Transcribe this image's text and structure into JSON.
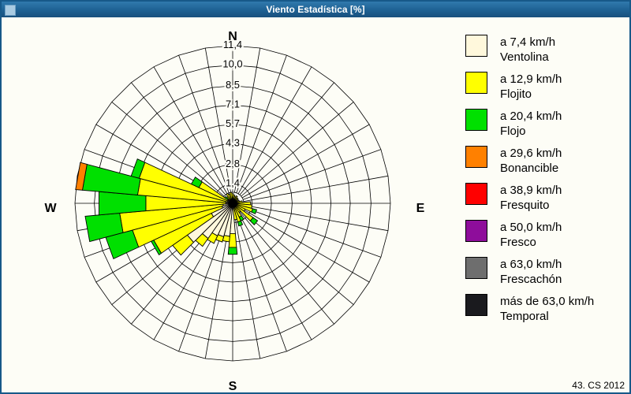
{
  "window": {
    "title": "Viento Estadística [%]",
    "footer": "43. CS 2012"
  },
  "legend": {
    "items": [
      {
        "speed": "a 7,4 km/h",
        "name": "Ventolina",
        "color": "#FFF8DC"
      },
      {
        "speed": "a 12,9 km/h",
        "name": "Flojito",
        "color": "#FFFF00"
      },
      {
        "speed": "a 20,4 km/h",
        "name": "Flojo",
        "color": "#00E000"
      },
      {
        "speed": "a 29,6 km/h",
        "name": "Bonancible",
        "color": "#FF8000"
      },
      {
        "speed": "a 38,9 km/h",
        "name": "Fresquito",
        "color": "#FF0000"
      },
      {
        "speed": "a 50,0 km/h",
        "name": "Fresco",
        "color": "#8E0D9B"
      },
      {
        "speed": "a 63,0 km/h",
        "name": "Frescachón",
        "color": "#6E6E6E"
      },
      {
        "speed": "más de 63,0 km/h",
        "name": "Temporal",
        "color": "#1A1A1E"
      }
    ]
  },
  "chart_data": {
    "type": "windrose-stacked-polar-bar",
    "title": "Viento Estadística [%]",
    "units": "%",
    "grid": true,
    "sector_width_deg": 10,
    "max_value": 11.4,
    "ring_values": [
      1.4,
      2.8,
      4.3,
      5.7,
      7.1,
      8.5,
      10.0,
      11.4
    ],
    "ring_labels": [
      "1,4",
      "2,8",
      "4,3",
      "5,7",
      "7,1",
      "8,5",
      "10,0",
      "11,4"
    ],
    "compass": {
      "north": "N",
      "east": "E",
      "south": "S",
      "west": "W"
    },
    "series_order": [
      "ventolina",
      "flojito",
      "flojo",
      "bonancible",
      "fresquito",
      "fresco",
      "frescachon",
      "temporal"
    ],
    "series_colors": {
      "ventolina": "#FFF8DC",
      "flojito": "#FFFF00",
      "flojo": "#00E000",
      "bonancible": "#FF8000",
      "fresquito": "#FF0000",
      "fresco": "#8E0D9B",
      "frescachon": "#6E6E6E",
      "temporal": "#1A1A1E"
    },
    "directions_deg": [
      0,
      10,
      20,
      30,
      40,
      50,
      60,
      70,
      80,
      90,
      100,
      110,
      120,
      130,
      140,
      150,
      160,
      170,
      180,
      190,
      200,
      210,
      220,
      230,
      240,
      250,
      260,
      270,
      280,
      290,
      300,
      310,
      320,
      330,
      340,
      350
    ],
    "values": {
      "ventolina": [
        0.3,
        0.3,
        0.2,
        0.2,
        0.2,
        0.2,
        0.2,
        0.2,
        0.2,
        0.3,
        0.3,
        0.3,
        0.2,
        0.3,
        0.2,
        0.3,
        0.3,
        0.4,
        2.2,
        2.4,
        2.5,
        2.6,
        3.1,
        4.0,
        1.7,
        0.8,
        0.7,
        0.5,
        0.5,
        0.4,
        0.4,
        0.2,
        0.2,
        0.3,
        0.3,
        0.3
      ],
      "flojito": [
        0.4,
        0.3,
        0.3,
        0.4,
        0.3,
        0.3,
        0.2,
        0.3,
        0.5,
        1.0,
        1.1,
        1.2,
        0.8,
        1.5,
        0.6,
        0.8,
        1.1,
        0.8,
        1.0,
        0.4,
        0.4,
        0.6,
        0.7,
        1.3,
        4.6,
        6.7,
        7.5,
        5.8,
        6.4,
        6.6,
        2.3,
        0.2,
        0.4,
        0.5,
        0.4,
        0.5
      ],
      "flojo": [
        0,
        0,
        0,
        0,
        0,
        0,
        0,
        0,
        0,
        0,
        0,
        0.3,
        0,
        0.4,
        0,
        0.3,
        0.3,
        0,
        0.5,
        0,
        0,
        0,
        0,
        0,
        0.2,
        2.0,
        2.5,
        3.4,
        4.0,
        0.6,
        0.6,
        0.3,
        0,
        0,
        0,
        0
      ],
      "bonancible": [
        0,
        0,
        0,
        0,
        0,
        0,
        0,
        0,
        0,
        0,
        0,
        0,
        0,
        0,
        0,
        0,
        0,
        0,
        0,
        0,
        0,
        0,
        0,
        0,
        0,
        0,
        0,
        0,
        0.5,
        0,
        0,
        0,
        0,
        0,
        0,
        0
      ],
      "fresquito": [
        0,
        0,
        0,
        0,
        0,
        0,
        0,
        0,
        0,
        0,
        0,
        0,
        0,
        0,
        0,
        0,
        0,
        0,
        0,
        0,
        0,
        0,
        0,
        0,
        0,
        0,
        0,
        0,
        0,
        0,
        0,
        0,
        0,
        0,
        0,
        0
      ],
      "fresco": [
        0,
        0,
        0,
        0,
        0,
        0,
        0,
        0,
        0,
        0,
        0,
        0,
        0,
        0,
        0,
        0,
        0,
        0,
        0,
        0,
        0,
        0,
        0,
        0,
        0,
        0,
        0,
        0,
        0,
        0,
        0,
        0,
        0,
        0,
        0,
        0
      ],
      "frescachon": [
        0,
        0,
        0,
        0,
        0,
        0,
        0,
        0,
        0,
        0,
        0,
        0,
        0,
        0,
        0,
        0,
        0,
        0,
        0,
        0,
        0,
        0,
        0,
        0,
        0,
        0,
        0,
        0,
        0,
        0,
        0,
        0,
        0,
        0,
        0,
        0
      ],
      "temporal": [
        0,
        0,
        0,
        0,
        0,
        0,
        0,
        0,
        0,
        0,
        0,
        0,
        0,
        0,
        0,
        0,
        0,
        0,
        0,
        0,
        0,
        0,
        0,
        0,
        0,
        0,
        0,
        0,
        0,
        0,
        0,
        0,
        0,
        0,
        0,
        0
      ]
    }
  }
}
